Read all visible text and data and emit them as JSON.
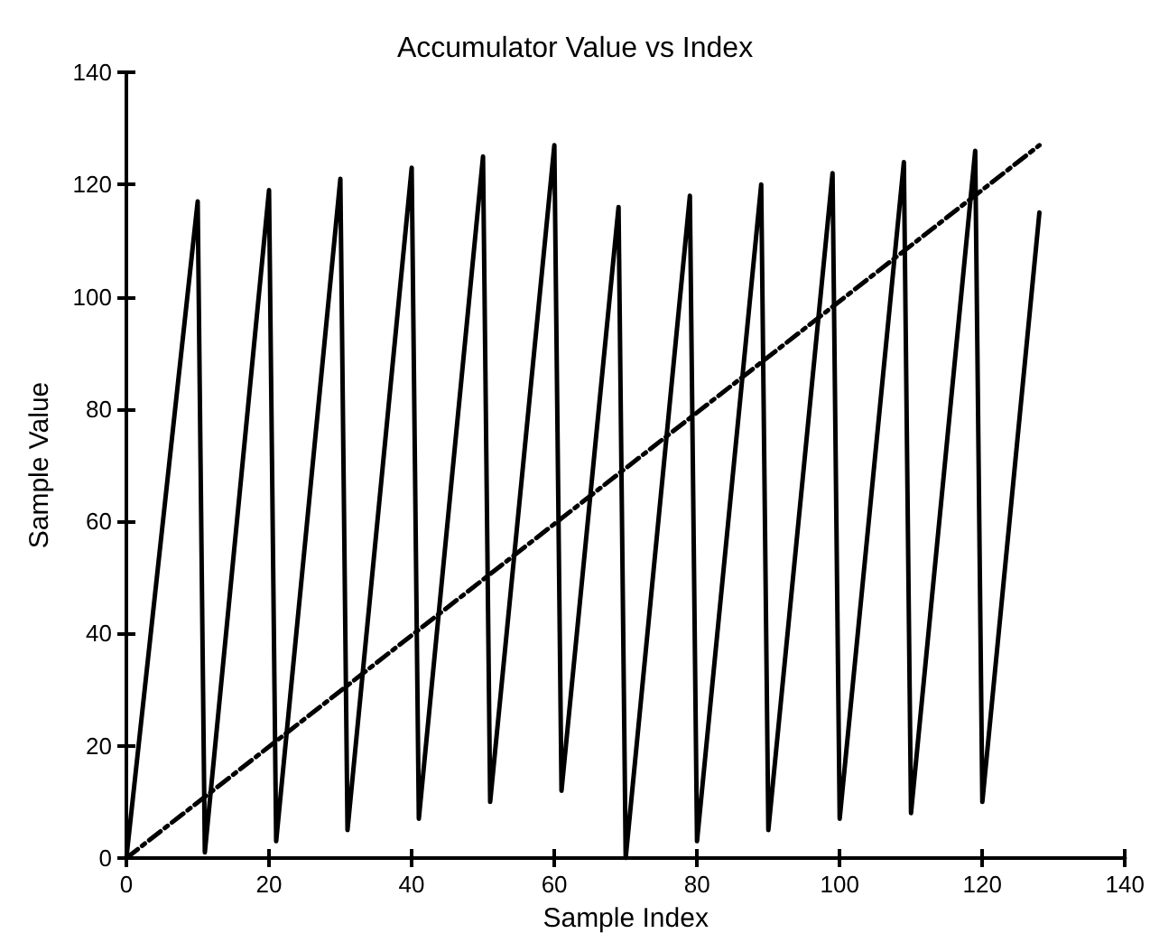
{
  "chart_data": {
    "type": "line",
    "title": "Accumulator Value vs Index",
    "xlabel": "Sample Index",
    "ylabel": "Sample Value",
    "series": [
      {
        "color": "#000000",
        "line_style": "solid",
        "x": [
          0,
          10,
          11,
          20,
          21,
          30,
          31,
          40,
          41,
          50,
          51,
          60,
          61,
          69,
          70,
          79,
          80,
          89,
          90,
          99,
          100,
          109,
          110,
          119,
          120,
          128
        ],
        "values": [
          0,
          117,
          1,
          119,
          3,
          121,
          5,
          123,
          7,
          125,
          10,
          127,
          12,
          116,
          0,
          118,
          3,
          120,
          5,
          122,
          7,
          124,
          8,
          126,
          10,
          115
        ]
      },
      {
        "color": "#000000",
        "line_style": "dashed",
        "x": [
          0,
          128
        ],
        "values": [
          0,
          127
        ]
      }
    ],
    "xlim": [
      0,
      140
    ],
    "xticks": [
      0,
      20,
      40,
      60,
      80,
      100,
      120,
      140
    ],
    "ylim": [
      0,
      140
    ],
    "yticks": [
      0,
      20,
      40,
      60,
      80,
      100,
      120,
      140
    ],
    "grid": false,
    "marker": "none"
  }
}
